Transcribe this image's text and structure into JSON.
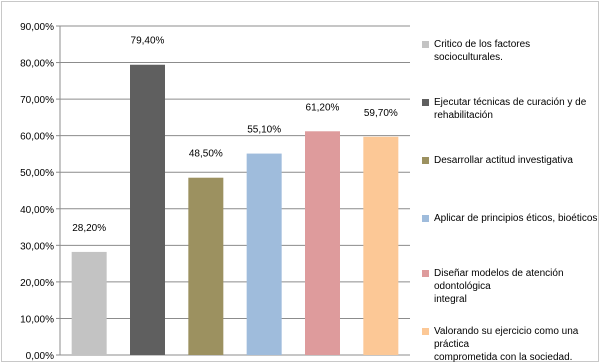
{
  "chart_data": {
    "type": "bar",
    "categories": [
      "Critico de los factores socioculturales.",
      "Ejecutar técnicas de curación y de\nrehabilitación",
      "Desarrollar actitud investigativa",
      "Aplicar de principios éticos, bioéticos",
      "Diseñar modelos de atención odontológica\nintegral",
      "Valorando su ejercicio como una práctica\ncomprometida con la sociedad."
    ],
    "values": [
      28.2,
      79.4,
      48.5,
      55.1,
      61.2,
      59.7
    ],
    "data_labels": [
      "28,20%",
      "79,40%",
      "48,50%",
      "55,10%",
      "61,20%",
      "59,70%"
    ],
    "colors": [
      "#c3c3c3",
      "#5f5f5f",
      "#9c9160",
      "#9fbcdc",
      "#de9b9c",
      "#fcc896"
    ],
    "ylim": [
      0,
      90
    ],
    "yticks": [
      "0,00%",
      "10,00%",
      "20,00%",
      "30,00%",
      "40,00%",
      "50,00%",
      "60,00%",
      "70,00%",
      "80,00%",
      "90,00%"
    ],
    "grid": true,
    "legend_position": "right"
  }
}
